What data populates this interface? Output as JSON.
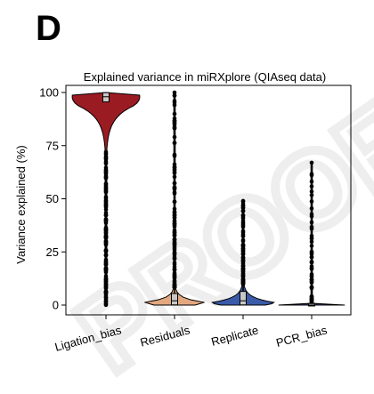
{
  "panel_label": "D",
  "watermark_text": "PROOF",
  "chart_data": {
    "type": "violin",
    "title": "Explained variance in miRXplore (QIAseq data)",
    "xlabel": "",
    "ylabel": "Variance explained (%)",
    "ylim": [
      0,
      100
    ],
    "yticks": [
      0,
      25,
      50,
      75,
      100
    ],
    "grid": false,
    "legend": "none",
    "categories": [
      "Ligation_bias",
      "Residuals",
      "Replicate",
      "PCR_bias"
    ],
    "series": [
      {
        "category": "Ligation_bias",
        "color": "#9b1b22",
        "median": 98,
        "q1": 96,
        "q3": 99.5,
        "max": 100,
        "min": 0,
        "density_peak": 98,
        "outlier_range": [
          0,
          72
        ]
      },
      {
        "category": "Residuals",
        "color": "#e3a87f",
        "median": 2,
        "q1": 0.5,
        "q3": 5,
        "max": 100,
        "min": 0,
        "density_peak": 1,
        "outlier_range": [
          8,
          100
        ]
      },
      {
        "category": "Replicate",
        "color": "#3a5ba8",
        "median": 2,
        "q1": 0.5,
        "q3": 6,
        "max": 49,
        "min": 0,
        "density_peak": 1,
        "outlier_range": [
          10,
          49
        ]
      },
      {
        "category": "PCR_bias",
        "color": "#2e3a6a",
        "median": 0,
        "q1": 0,
        "q3": 0.3,
        "max": 67,
        "min": 0,
        "density_peak": 0,
        "outlier_range": [
          1,
          67
        ]
      }
    ]
  }
}
